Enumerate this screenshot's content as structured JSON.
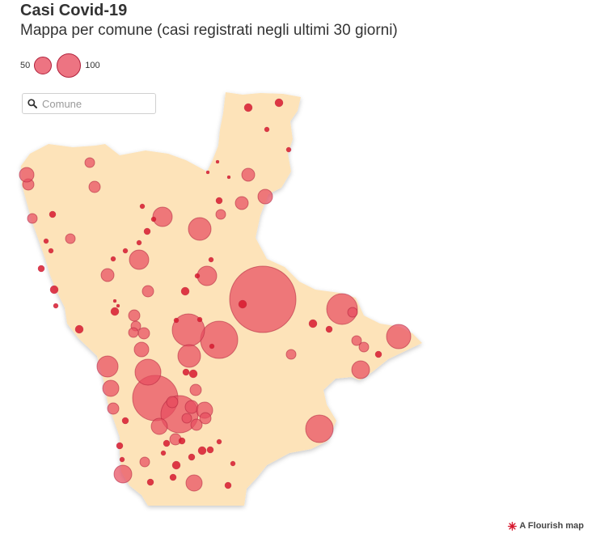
{
  "title": "Casi Covid-19",
  "subtitle": "Mappa per comune (casi registrati negli ultimi 30 giorni)",
  "legend": {
    "small_label": "50",
    "big_label": "100"
  },
  "search": {
    "placeholder": "Comune",
    "value": ""
  },
  "footer": {
    "credit": "A Flourish map"
  },
  "colors": {
    "land": "#fde3b9",
    "bubble": "#e84d5f",
    "bubble_stroke": "#b0223c",
    "point": "#d7192e"
  },
  "icons": {
    "search": "search-icon",
    "flourish": "flourish-logo-icon"
  }
}
